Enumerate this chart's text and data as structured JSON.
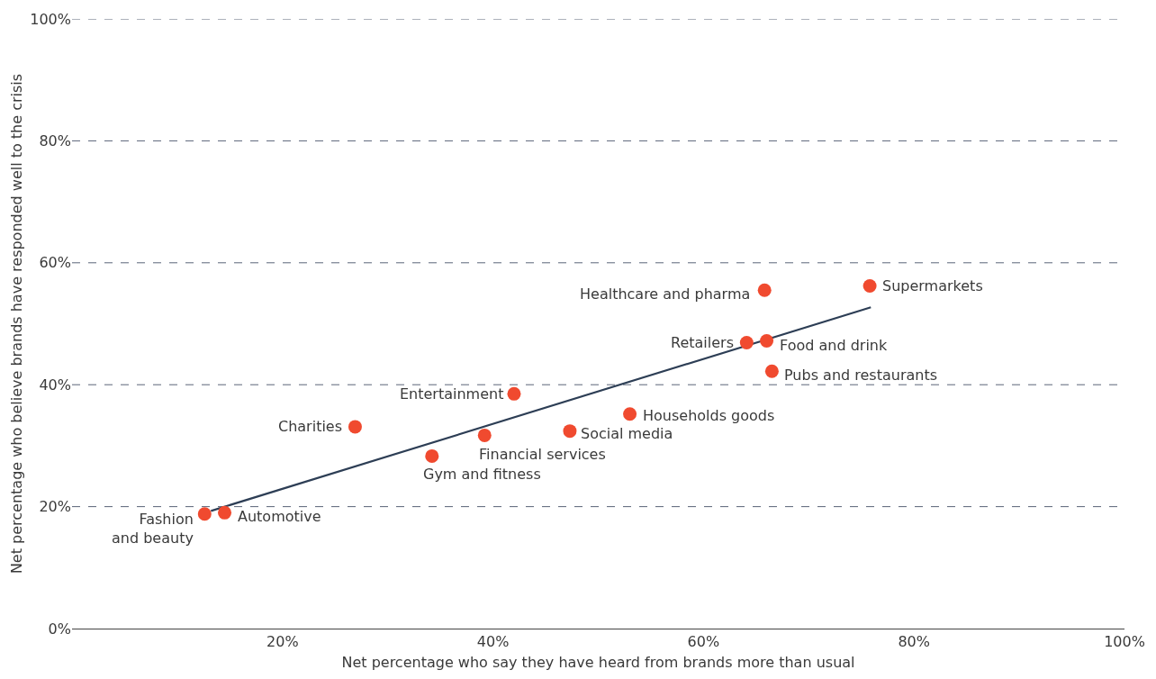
{
  "chart_data": {
    "type": "scatter",
    "xlabel": "Net percentage who say they have heard from brands more than usual",
    "ylabel": "Net percentage who believe brands have responded well to the crisis",
    "xlim": [
      0,
      100
    ],
    "ylim": [
      0,
      100
    ],
    "xticks": [
      {
        "value": 20,
        "label": "20%"
      },
      {
        "value": 40,
        "label": "40%"
      },
      {
        "value": 60,
        "label": "60%"
      },
      {
        "value": 80,
        "label": "80%"
      },
      {
        "value": 100,
        "label": "100%"
      }
    ],
    "yticks": [
      {
        "value": 0,
        "label": "0%"
      },
      {
        "value": 20,
        "label": "20%"
      },
      {
        "value": 40,
        "label": "40%"
      },
      {
        "value": 60,
        "label": "60%"
      },
      {
        "value": 80,
        "label": "80%"
      },
      {
        "value": 100,
        "label": "100%"
      }
    ],
    "grid": "y",
    "marker": "circle",
    "series": [
      {
        "type": "line",
        "marker": "none",
        "color": "#2d3e55",
        "x": [
          13.2,
          75.9
        ],
        "values": [
          19.3,
          52.7
        ]
      },
      {
        "color": "#f04a2f",
        "x": [
          75.8,
          65.8,
          64.1,
          66.0,
          66.5,
          42.0,
          53.0,
          47.3,
          26.9,
          39.2,
          34.2,
          12.6,
          14.5
        ],
        "values": [
          56.2,
          55.5,
          46.9,
          47.2,
          42.2,
          38.5,
          35.2,
          32.4,
          33.1,
          31.7,
          28.3,
          18.8,
          19.0
        ]
      }
    ],
    "annotations": [
      {
        "text": "Supermarkets",
        "x": 75.8,
        "y": 56.2
      },
      {
        "text": "Healthcare and pharma",
        "x": 65.8,
        "y": 55.5
      },
      {
        "text": "Retailers",
        "x": 64.1,
        "y": 46.9
      },
      {
        "text": "Food and drink",
        "x": 66.0,
        "y": 47.2
      },
      {
        "text": "Pubs and restaurants",
        "x": 66.5,
        "y": 42.2
      },
      {
        "text": "Entertainment",
        "x": 42.0,
        "y": 38.5
      },
      {
        "text": "Households goods",
        "x": 53.0,
        "y": 35.2
      },
      {
        "text": "Social media",
        "x": 47.3,
        "y": 32.4
      },
      {
        "text": "Charities",
        "x": 26.9,
        "y": 33.1
      },
      {
        "text": "Financial services",
        "x": 39.2,
        "y": 31.7
      },
      {
        "text": "Gym and fitness",
        "x": 34.2,
        "y": 28.3
      },
      {
        "text": "Fashion\nand beauty",
        "x": 12.6,
        "y": 18.8
      },
      {
        "text": "Automotive",
        "x": 14.5,
        "y": 19.0
      }
    ]
  }
}
